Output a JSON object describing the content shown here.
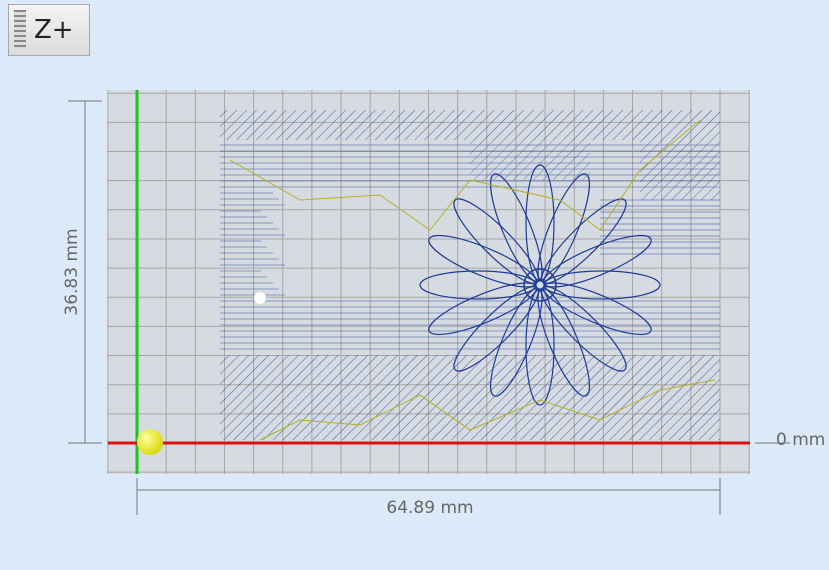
{
  "toolbar": {
    "button": "Z+"
  },
  "preview": {
    "height_label": "36.83 mm",
    "width_label": "64.89 mm",
    "origin_label": "0 mm"
  }
}
